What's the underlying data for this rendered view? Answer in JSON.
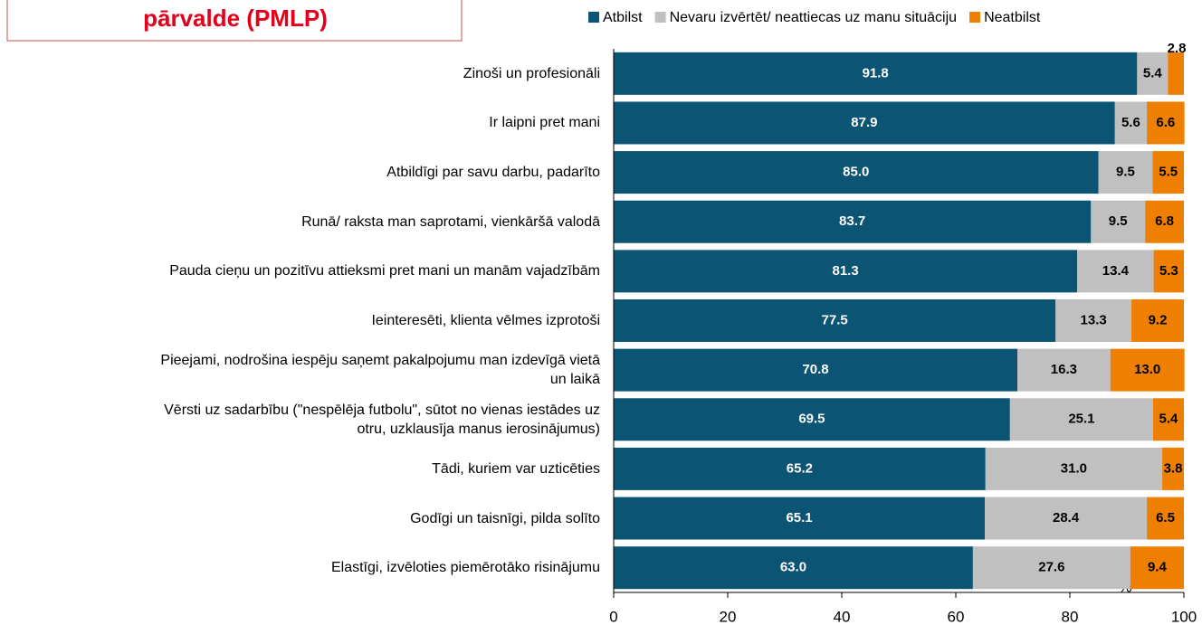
{
  "chart_data": {
    "type": "stacked_bar_horizontal",
    "title": "pārvalde (PMLP)",
    "categories": [
      "Zinoši un profesionāli",
      "Ir laipni pret mani",
      "Atbildīgi par savu darbu, padarīto",
      "Runā/ raksta man saprotami, vienkāršā valodā",
      "Pauda cieņu un pozitīvu attieksmi pret mani un manām vajadzībām",
      "Ieinteresēti, klienta vēlmes izprotoši",
      "Pieejami, nodrošina iespēju saņemt pakalpojumu man izdevīgā vietā\nun laikā",
      "Vērsti uz sadarbību (\"nespēlēja futbolu\", sūtot no vienas iestādes uz\notru, uzklausīja manus ierosinājumus)",
      "Tādi, kuriem var uzticēties",
      "Godīgi un taisnīgi, pilda solīto",
      "Elastīgi, izvēloties piemērotāko risinājumu"
    ],
    "series": [
      {
        "name": "Atbilst",
        "color": "#0b5474",
        "label_color": "#ffffff",
        "values": [
          91.8,
          87.9,
          85.0,
          83.7,
          81.3,
          77.5,
          70.8,
          69.5,
          65.2,
          65.1,
          63.0
        ],
        "value_labels": [
          "91.8",
          "87.9",
          "85.0",
          "83.7",
          "81.3",
          "77.5",
          "70.8",
          "69.5",
          "65.2",
          "65.1",
          "63.0"
        ]
      },
      {
        "name": "Nevaru izvērtēt/ neattiecas uz manu situāciju",
        "color": "#c0c0c0",
        "label_color": "#000000",
        "values": [
          5.4,
          5.6,
          9.5,
          9.5,
          13.4,
          13.3,
          16.3,
          25.1,
          31.0,
          28.4,
          27.6
        ],
        "value_labels": [
          "5.4",
          "5.6",
          "9.5",
          "9.5",
          "13.4",
          "13.3",
          "16.3",
          "25.1",
          "31.0",
          "28.4",
          "27.6"
        ]
      },
      {
        "name": "Neatbilst",
        "color": "#ee7f00",
        "label_color": "#000000",
        "values": [
          2.8,
          6.6,
          5.5,
          6.8,
          5.3,
          9.2,
          13.0,
          5.4,
          3.8,
          6.5,
          9.4
        ],
        "value_labels": [
          "2.8",
          "6.6",
          "5.5",
          "6.8",
          "5.3",
          "9.2",
          "13.0",
          "5.4",
          "3.8",
          "6.5",
          "9.4"
        ]
      }
    ],
    "x_label": "%",
    "xlim": [
      0,
      100
    ],
    "xticks": [
      0,
      20,
      40,
      60,
      80,
      100
    ],
    "legend": "top"
  }
}
